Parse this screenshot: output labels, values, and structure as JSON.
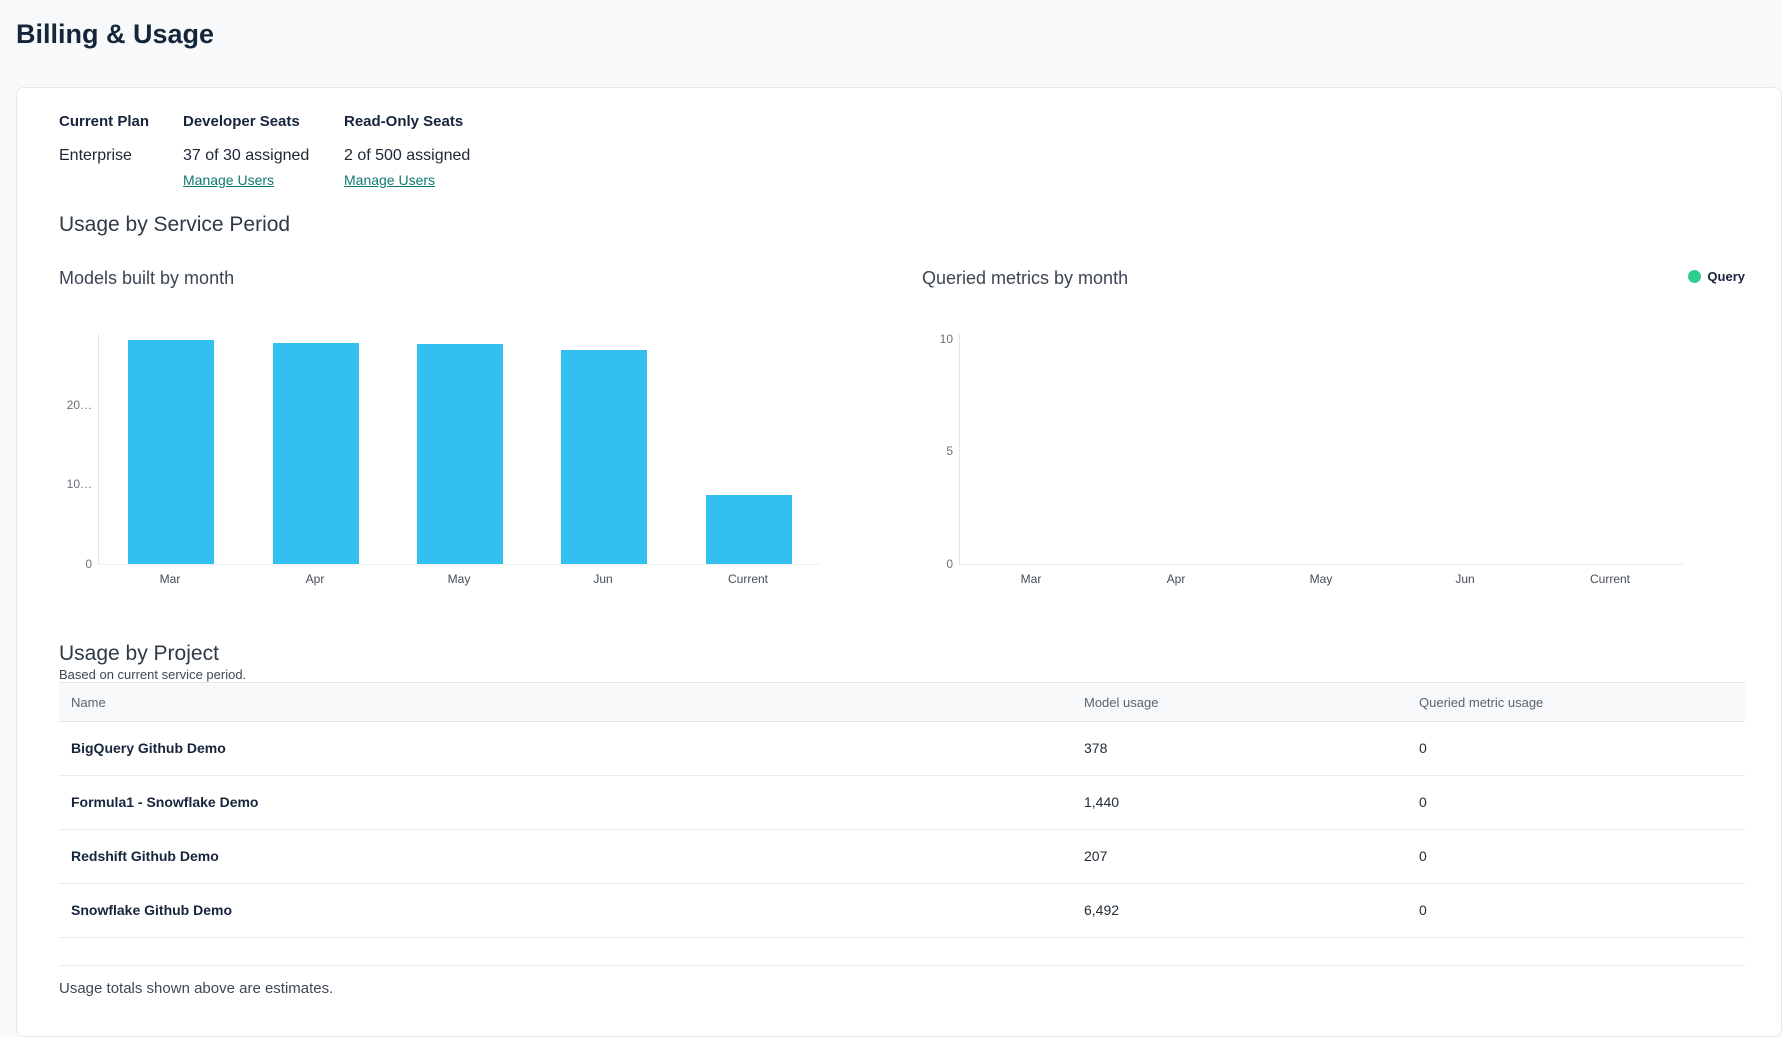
{
  "page": {
    "title": "Billing & Usage"
  },
  "plan_summary": {
    "columns": [
      {
        "label": "Current Plan",
        "value": "Enterprise"
      },
      {
        "label": "Developer Seats",
        "value": "37 of 30 assigned",
        "link": "Manage Users"
      },
      {
        "label": "Read-Only Seats",
        "value": "2 of 500 assigned",
        "link": "Manage Users"
      }
    ]
  },
  "service_period": {
    "heading": "Usage by Service Period"
  },
  "chart_data": [
    {
      "type": "bar",
      "title": "Models built by month",
      "categories": [
        "Mar",
        "Apr",
        "May",
        "Jun",
        "Current"
      ],
      "values": [
        28300,
        27900,
        27800,
        27000,
        8700
      ],
      "yticks": [
        0,
        10000,
        20000
      ],
      "ytick_labels_top_to_bottom": [
        "20…",
        "10…",
        "0"
      ],
      "ylim": [
        0,
        29000
      ],
      "bar_color": "#33bfef",
      "grid": false,
      "legend_position": "none"
    },
    {
      "type": "bar",
      "title": "Queried metrics by month",
      "categories": [
        "Mar",
        "Apr",
        "May",
        "Jun",
        "Current"
      ],
      "series": [
        {
          "name": "Query",
          "values": [
            0,
            0,
            0,
            0,
            0
          ],
          "color": "#2fcd8f"
        }
      ],
      "yticks": [
        0,
        5,
        10
      ],
      "ytick_labels_top_to_bottom": [
        "10",
        "5",
        "0"
      ],
      "ylim": [
        0,
        10
      ],
      "grid": false,
      "legend": [
        "Query"
      ],
      "legend_position": "top-right"
    }
  ],
  "project_section": {
    "heading": "Usage by Project",
    "subtitle": "Based on current service period.",
    "table": {
      "headers": [
        "Name",
        "Model usage",
        "Queried metric usage"
      ],
      "rows": [
        {
          "name": "BigQuery Github Demo",
          "model_usage": "378",
          "queried_metric_usage": "0"
        },
        {
          "name": "Formula1 - Snowflake Demo",
          "model_usage": "1,440",
          "queried_metric_usage": "0"
        },
        {
          "name": "Redshift Github Demo",
          "model_usage": "207",
          "queried_metric_usage": "0"
        },
        {
          "name": "Snowflake Github Demo",
          "model_usage": "6,492",
          "queried_metric_usage": "0"
        }
      ]
    }
  },
  "footnote": "Usage totals shown above are estimates.",
  "colors": {
    "accent_teal": "#0e7a70",
    "bar_blue": "#33bfef",
    "legend_green": "#2fcd8f",
    "page_bg": "#f8f9fa",
    "card_bg": "#ffffff"
  }
}
